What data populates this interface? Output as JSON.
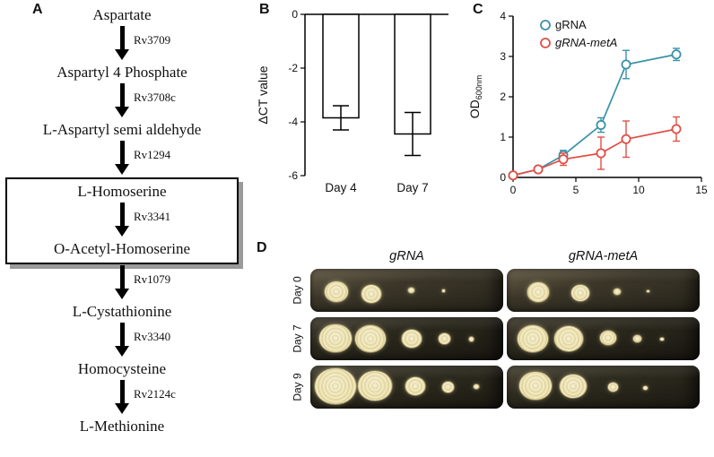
{
  "figure": {
    "panel_a": {
      "label": "A",
      "pathway": [
        {
          "compound": "Aspartate",
          "enzyme_to_next": "Rv3709",
          "boxed": false
        },
        {
          "compound": "Aspartyl 4 Phosphate",
          "enzyme_to_next": "Rv3708c",
          "boxed": false
        },
        {
          "compound": "L-Aspartyl semi aldehyde",
          "enzyme_to_next": "Rv1294",
          "boxed": false
        },
        {
          "compound": "L-Homoserine",
          "enzyme_to_next": "Rv3341",
          "boxed": true
        },
        {
          "compound": "O-Acetyl-Homoserine",
          "enzyme_to_next": "Rv1079",
          "boxed": true
        },
        {
          "compound": "L-Cystathionine",
          "enzyme_to_next": "Rv3340",
          "boxed": false
        },
        {
          "compound": "Homocysteine",
          "enzyme_to_next": "Rv2124c",
          "boxed": false
        },
        {
          "compound": "L-Methionine",
          "enzyme_to_next": null,
          "boxed": false
        }
      ]
    },
    "panel_b": {
      "label": "B"
    },
    "panel_c": {
      "label": "C"
    },
    "panel_d": {
      "label": "D",
      "columns": [
        "gRNA",
        "gRNA-metA"
      ],
      "rows": [
        {
          "label": "Day 0",
          "plates": [
            {
              "colonies": [
                {
                  "x": 7,
                  "y": 28,
                  "d": 26
                },
                {
                  "x": 26,
                  "y": 36,
                  "d": 22
                },
                {
                  "x": 50,
                  "y": 42,
                  "d": 7
                },
                {
                  "x": 68,
                  "y": 46,
                  "d": 3
                }
              ]
            },
            {
              "colonies": [
                {
                  "x": 10,
                  "y": 30,
                  "d": 24
                },
                {
                  "x": 33,
                  "y": 36,
                  "d": 20
                },
                {
                  "x": 55,
                  "y": 44,
                  "d": 8
                },
                {
                  "x": 72,
                  "y": 47,
                  "d": 3
                }
              ]
            }
          ]
        },
        {
          "label": "Day 7",
          "plates": [
            {
              "colonies": [
                {
                  "x": 4,
                  "y": 14,
                  "d": 36
                },
                {
                  "x": 23,
                  "y": 16,
                  "d": 34
                },
                {
                  "x": 47,
                  "y": 28,
                  "d": 22
                },
                {
                  "x": 66,
                  "y": 36,
                  "d": 13
                },
                {
                  "x": 82,
                  "y": 44,
                  "d": 5
                }
              ]
            },
            {
              "colonies": [
                {
                  "x": 5,
                  "y": 16,
                  "d": 34
                },
                {
                  "x": 24,
                  "y": 18,
                  "d": 32
                },
                {
                  "x": 48,
                  "y": 30,
                  "d": 18
                },
                {
                  "x": 65,
                  "y": 40,
                  "d": 9
                },
                {
                  "x": 79,
                  "y": 45,
                  "d": 4
                }
              ]
            }
          ]
        },
        {
          "label": "Day 9",
          "plates": [
            {
              "colonies": [
                {
                  "x": 2,
                  "y": 4,
                  "d": 46
                },
                {
                  "x": 24,
                  "y": 10,
                  "d": 38
                },
                {
                  "x": 49,
                  "y": 26,
                  "d": 22
                },
                {
                  "x": 68,
                  "y": 36,
                  "d": 13
                },
                {
                  "x": 84,
                  "y": 42,
                  "d": 6
                }
              ]
            },
            {
              "colonies": [
                {
                  "x": 6,
                  "y": 12,
                  "d": 36
                },
                {
                  "x": 27,
                  "y": 18,
                  "d": 30
                },
                {
                  "x": 52,
                  "y": 38,
                  "d": 11
                },
                {
                  "x": 70,
                  "y": 45,
                  "d": 5
                }
              ]
            }
          ]
        }
      ]
    }
  },
  "chart_data": [
    {
      "type": "bar",
      "title": "",
      "categories": [
        "Day 4",
        "Day 7"
      ],
      "values": [
        -3.85,
        -4.45
      ],
      "errors": [
        0.45,
        0.8
      ],
      "ylabel": "ΔCT value",
      "ylim": [
        -6,
        0
      ],
      "yticks": [
        0,
        -2,
        -4,
        -6
      ],
      "bar_fill": "#ffffff",
      "bar_stroke": "#000000",
      "grid": false
    },
    {
      "type": "line",
      "title": "",
      "x": [
        0,
        2,
        4,
        7,
        9,
        13
      ],
      "series": [
        {
          "name": "gRNA",
          "italic": false,
          "color": "#3a92a8",
          "values": [
            0.05,
            0.2,
            0.55,
            1.3,
            2.8,
            3.05
          ],
          "errors": [
            0.04,
            0.05,
            0.12,
            0.18,
            0.35,
            0.15
          ]
        },
        {
          "name": "gRNA-metA",
          "italic": true,
          "color": "#e04f46",
          "values": [
            0.05,
            0.2,
            0.45,
            0.6,
            0.95,
            1.2
          ],
          "errors": [
            0.03,
            0.05,
            0.15,
            0.4,
            0.45,
            0.3
          ]
        }
      ],
      "xlabel": "",
      "ylabel": "OD",
      "ylabel_sub": "600nm",
      "xlim": [
        0,
        15
      ],
      "ylim": [
        0,
        4
      ],
      "xticks": [
        0,
        5,
        10,
        15
      ],
      "yticks": [
        0,
        1,
        2,
        3,
        4
      ],
      "legend_position": "top-left",
      "grid": false
    }
  ]
}
